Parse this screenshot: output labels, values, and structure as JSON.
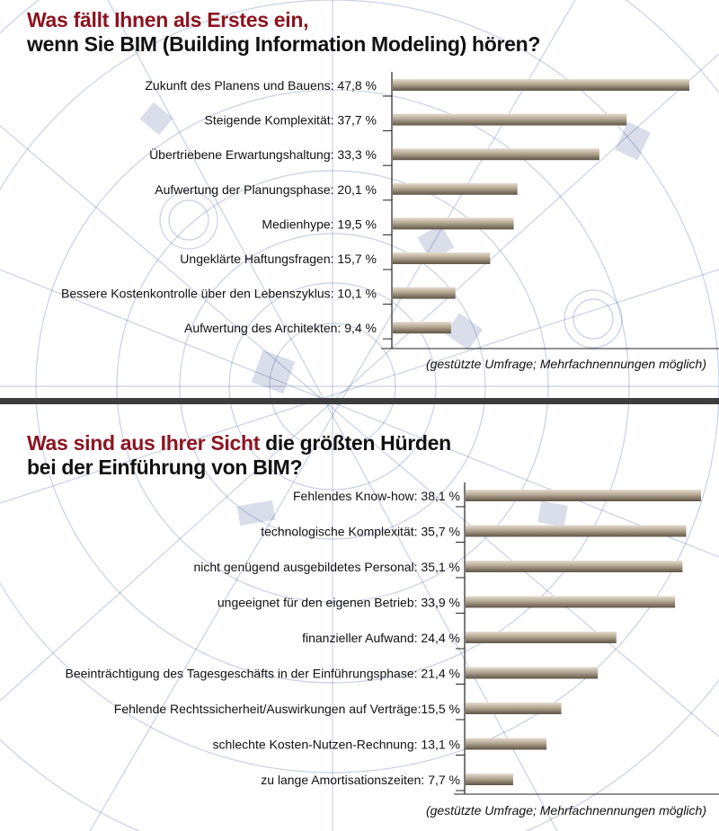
{
  "chart_data": [
    {
      "type": "bar",
      "orientation": "horizontal",
      "title_line1": "Was fällt Ihnen als Erstes ein,",
      "title_line2": "wenn Sie BIM (Building Information Modeling) hören?",
      "categories": [
        "Zukunft des Planens und Bauens",
        "Steigende Komplexität",
        "Übertriebene Erwartungshaltung",
        "Aufwertung der Planungsphase",
        "Medienhype",
        "Ungeklärte Haftungsfragen",
        "Bessere Kostenkontrolle über den Lebenszyklus",
        "Aufwertung des Architekten"
      ],
      "values": [
        47.8,
        37.7,
        33.3,
        20.1,
        19.5,
        15.7,
        10.1,
        9.4
      ],
      "labels": [
        "Zukunft des Planens und Bauens: 47,8 %",
        "Steigende Komplexität: 37,7 %",
        "Übertriebene Erwartungshaltung: 33,3 %",
        "Aufwertung der Planungsphase: 20,1 %",
        "Medienhype: 19,5 %",
        "Ungeklärte Haftungsfragen: 15,7 %",
        "Bessere Kostenkontrolle über den Lebenszyklus: 10,1 %",
        "Aufwertung des Architekten: 9,4 %"
      ],
      "note": "(gestützte Umfrage; Mehrfachnennungen möglich)"
    },
    {
      "type": "bar",
      "orientation": "horizontal",
      "title_red": "Was sind aus Ihrer Sicht",
      "title_dark": " die größten Hürden",
      "title_line2": "bei der Einführung von BIM?",
      "categories": [
        "Fehlendes Know-how",
        "technologische Komplexität",
        "nicht genügend ausgebildetes Personal",
        "ungeeignet für den eigenen Betrieb",
        "finanzieller Aufwand",
        "Beeinträchtigung des Tagesgeschäfts in der Einführungsphase",
        "Fehlende Rechtssicherheit/Auswirkungen auf Verträge",
        "schlechte Kosten-Nutzen-Rechnung",
        "zu lange Amortisationszeiten"
      ],
      "values": [
        38.1,
        35.7,
        35.1,
        33.9,
        24.4,
        21.4,
        15.5,
        13.1,
        7.7
      ],
      "labels": [
        "Fehlendes Know-how: 38,1 %",
        "technologische Komplexität: 35,7 %",
        "nicht genügend ausgebildetes Personal: 35,1 %",
        "ungeeignet für den eigenen Betrieb: 33,9 %",
        "finanzieller Aufwand: 24,4 %",
        "Beeinträchtigung des Tagesgeschäfts in der Einführungsphase: 21,4 %",
        "Fehlende Rechtssicherheit/Auswirkungen auf Verträge:15,5 %",
        "schlechte Kosten-Nutzen-Rechnung: 13,1 %",
        "zu lange Amortisationszeiten: 7,7 %"
      ],
      "note": "(gestützte Umfrage; Mehrfachnennungen möglich)"
    }
  ],
  "colors": {
    "title_red": "#8c1420",
    "bar_top": "#e6ddd0",
    "bar_mid": "#b3a691",
    "bar_bottom": "#5e5446",
    "blueprint": "#2b4a8c",
    "divider": "#3d3d3d"
  }
}
